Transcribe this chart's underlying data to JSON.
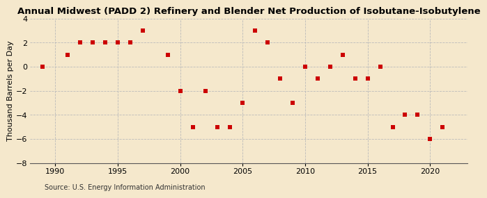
{
  "title": "Annual Midwest (PADD 2) Refinery and Blender Net Production of Isobutane-Isobutylene",
  "ylabel": "Thousand Barrels per Day",
  "source": "Source: U.S. Energy Information Administration",
  "background_color": "#f5e8cc",
  "years": [
    1989,
    1991,
    1992,
    1993,
    1994,
    1995,
    1996,
    1997,
    1999,
    2000,
    2001,
    2002,
    2003,
    2004,
    2005,
    2006,
    2007,
    2008,
    2009,
    2010,
    2011,
    2012,
    2013,
    2014,
    2015,
    2016,
    2017,
    2018,
    2019,
    2020,
    2021
  ],
  "values": [
    0,
    1,
    2,
    2,
    2,
    2,
    2,
    3,
    1,
    -2,
    -5,
    -2,
    -5,
    -5,
    -3,
    3,
    2,
    -1,
    -3,
    0,
    -1,
    0,
    1,
    -1,
    -1,
    0,
    -5,
    -4,
    -4,
    -6,
    -5
  ],
  "ylim": [
    -8,
    4
  ],
  "xlim": [
    1988,
    2023
  ],
  "yticks": [
    -8,
    -6,
    -4,
    -2,
    0,
    2,
    4
  ],
  "xticks": [
    1990,
    1995,
    2000,
    2005,
    2010,
    2015,
    2020
  ],
  "marker_color": "#cc0000",
  "marker_size": 25,
  "grid_color": "#bbbbbb",
  "title_fontsize": 9.5,
  "label_fontsize": 8,
  "tick_fontsize": 8,
  "source_fontsize": 7
}
